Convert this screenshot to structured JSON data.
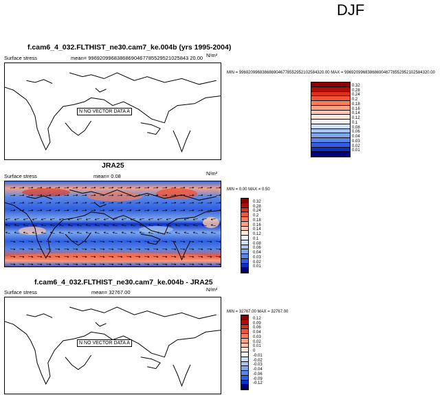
{
  "season": "DJF",
  "panels": [
    {
      "title": "f.cam6_4_032.FLTHIST_ne30.cam7_ke.004b (yrs 1995-2004)",
      "left_label": "Surface stress",
      "mean_label": "mean= 99692099683868690467785529521025843 20.00",
      "units": "N/m²",
      "minmax": "MIN = 9969209968386869046778552952102584320.00 MAX = 9969209968386869046778552952102584320.00",
      "no_data_text": "NO VECTOR DATA",
      "no_data_left": "N",
      "no_data_right": "A",
      "levels": [
        "0.32",
        "0.28",
        "0.24",
        "0.2",
        "0.18",
        "0.16",
        "0.14",
        "0.12",
        "0.1",
        "0.08",
        "0.06",
        "0.04",
        "0.03",
        "0.02",
        "0.01"
      ],
      "colors": [
        "#8b0000",
        "#b40a0a",
        "#dc2f1a",
        "#f0553a",
        "#f77c5a",
        "#fba184",
        "#fdc6ad",
        "#fde6da",
        "#f5f5f5",
        "#cfe0f5",
        "#a7c6f0",
        "#7ea8eb",
        "#5686e6",
        "#2f5ee0",
        "#0b30c8",
        "#00007d"
      ]
    },
    {
      "title": "JRA25",
      "left_label": "Surface stress",
      "mean_label": "mean=   0.08",
      "units": "N/m²",
      "minmax": "MIN = 0.00 MAX = 0.50",
      "levels": [
        "0.32",
        "0.28",
        "0.24",
        "0.2",
        "0.18",
        "0.16",
        "0.14",
        "0.12",
        "0.1",
        "0.08",
        "0.06",
        "0.04",
        "0.03",
        "0.02",
        "0.01"
      ],
      "colors": [
        "#8b0000",
        "#b40a0a",
        "#dc2f1a",
        "#f0553a",
        "#f77c5a",
        "#fba184",
        "#fdc6ad",
        "#fde6da",
        "#f5f5f5",
        "#cfe0f5",
        "#a7c6f0",
        "#7ea8eb",
        "#5686e6",
        "#2f5ee0",
        "#0b30c8",
        "#00007d"
      ]
    },
    {
      "title": "f.cam6_4_032.FLTHIST_ne30.cam7_ke.004b - JRA25",
      "left_label": "Surface stress",
      "mean_label": "mean= 32767.00",
      "units": "N/m²",
      "minmax": "MIN = 32767.00 MAX = 32767.00",
      "no_data_text": "NO VECTOR DATA",
      "no_data_left": "N",
      "no_data_right": "A",
      "levels": [
        "0.12",
        "0.09",
        "0.06",
        "0.04",
        "0.03",
        "0.02",
        "0.01",
        "0",
        "-0.01",
        "-0.02",
        "-0.03",
        "-0.04",
        "-0.06",
        "-0.09",
        "-0.12"
      ],
      "colors": [
        "#8b0000",
        "#b40a0a",
        "#dc2f1a",
        "#f0553a",
        "#f77c5a",
        "#fba184",
        "#fdc6ad",
        "#fde6da",
        "#f5f5f5",
        "#cfe0f5",
        "#a7c6f0",
        "#7ea8eb",
        "#5686e6",
        "#2f5ee0",
        "#0b30c8",
        "#00007d"
      ]
    }
  ],
  "chart_data": [
    {
      "type": "heatmap",
      "title": "f.cam6_4_032.FLTHIST_ne30.cam7_ke.004b (yrs 1995-2004)",
      "field": "Surface stress",
      "units": "N/m²",
      "mean": "99692099683868690467785529521025843 20.00",
      "min": "9969209968386869046778552952102584320.00",
      "max": "9969209968386869046778552952102584320.00",
      "contour_levels": [
        0.01,
        0.02,
        0.03,
        0.04,
        0.06,
        0.08,
        0.1,
        0.12,
        0.14,
        0.16,
        0.18,
        0.2,
        0.24,
        0.28,
        0.32
      ],
      "data_status": "NO VECTOR DATA"
    },
    {
      "type": "heatmap",
      "title": "JRA25",
      "field": "Surface stress",
      "units": "N/m²",
      "mean": 0.08,
      "min": 0.0,
      "max": 0.5,
      "contour_levels": [
        0.01,
        0.02,
        0.03,
        0.04,
        0.06,
        0.08,
        0.1,
        0.12,
        0.14,
        0.16,
        0.18,
        0.2,
        0.24,
        0.28,
        0.32
      ]
    },
    {
      "type": "heatmap",
      "title": "f.cam6_4_032.FLTHIST_ne30.cam7_ke.004b - JRA25",
      "field": "Surface stress",
      "units": "N/m²",
      "mean": 32767.0,
      "min": 32767.0,
      "max": 32767.0,
      "contour_levels": [
        -0.12,
        -0.09,
        -0.06,
        -0.04,
        -0.03,
        -0.02,
        -0.01,
        0,
        0.01,
        0.02,
        0.03,
        0.04,
        0.06,
        0.09,
        0.12
      ],
      "data_status": "NO VECTOR DATA"
    }
  ]
}
